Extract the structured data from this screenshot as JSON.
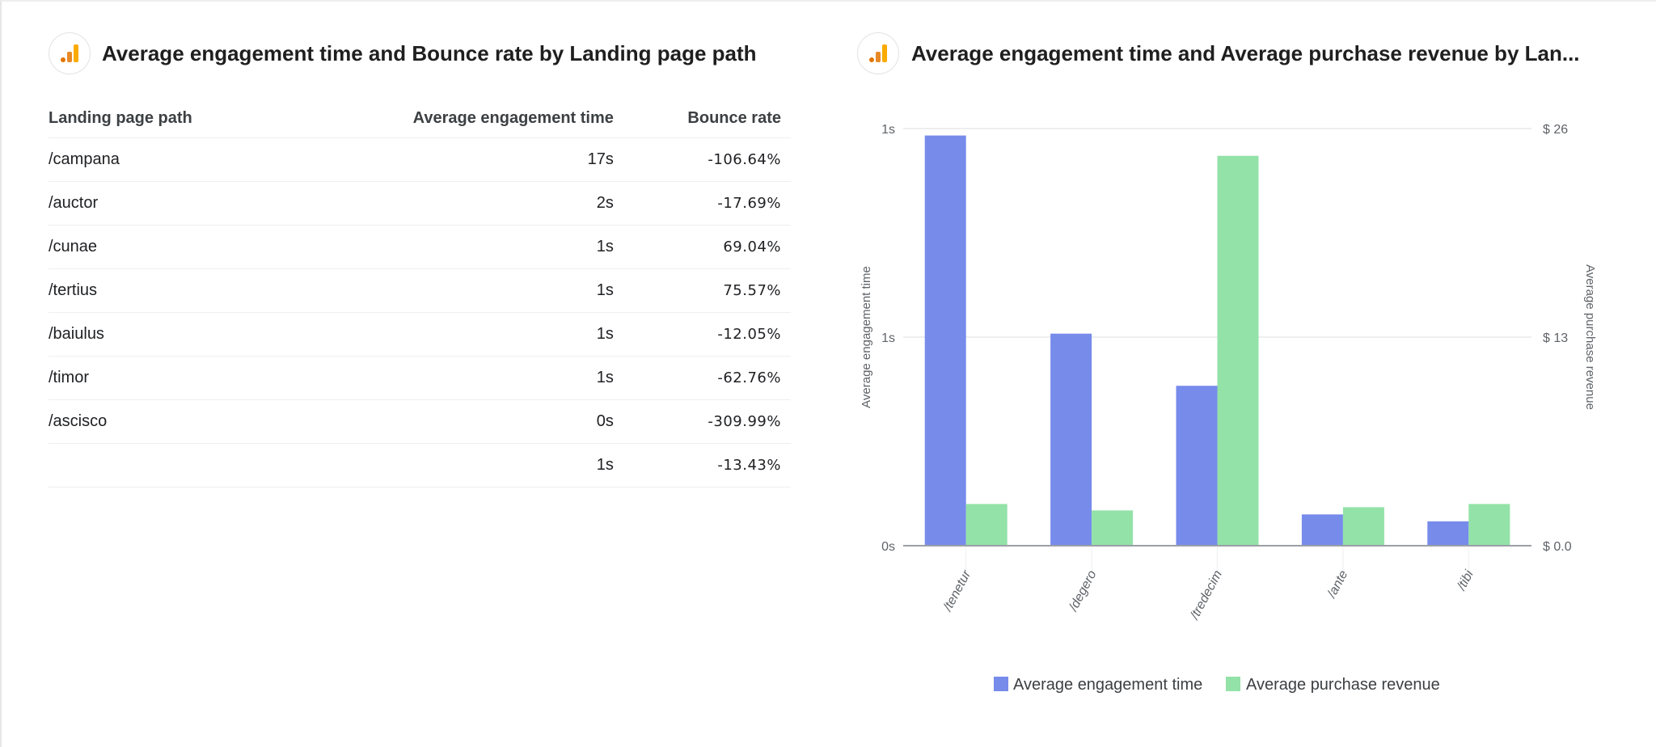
{
  "table_card": {
    "title": "Average engagement time and Bounce rate by Landing page path",
    "icon": "analytics-bar-icon",
    "columns": [
      "Landing page path",
      "Average engagement time",
      "Bounce rate"
    ],
    "rows": [
      [
        "/campana",
        "17s",
        "-106.64%"
      ],
      [
        "/auctor",
        "2s",
        "-17.69%"
      ],
      [
        "/cunae",
        "1s",
        "69.04%"
      ],
      [
        "/tertius",
        "1s",
        "75.57%"
      ],
      [
        "/baiulus",
        "1s",
        "-12.05%"
      ],
      [
        "/timor",
        "1s",
        "-62.76%"
      ],
      [
        "/ascisco",
        "0s",
        "-309.99%"
      ],
      [
        "",
        "1s",
        "-13.43%"
      ]
    ]
  },
  "chart_card": {
    "title": "Average engagement time and Average purchase revenue by Lan...",
    "icon": "analytics-bar-icon"
  },
  "chart_data": {
    "type": "bar",
    "categories": [
      "/tenetur",
      "/degero",
      "/tredecim",
      "/ante",
      "/tibi"
    ],
    "series": [
      {
        "name": "Average engagement time",
        "axis": "left",
        "color": "#778beb",
        "values": [
          1.18,
          0.61,
          0.46,
          0.09,
          0.07
        ]
      },
      {
        "name": "Average purchase revenue",
        "axis": "right",
        "color": "#93e2a8",
        "values": [
          2.6,
          2.2,
          24.3,
          2.4,
          2.6
        ]
      }
    ],
    "ylabel": "Average engagement time",
    "y2label": "Average purchase revenue",
    "ylim": [
      0,
      1.2
    ],
    "y2lim": [
      0,
      26
    ],
    "yticks": [
      "0s",
      "1s",
      "1s"
    ],
    "y2ticks": [
      "$ 0.0",
      "$ 13",
      "$ 26"
    ],
    "grid": true,
    "legend": "bottom"
  }
}
